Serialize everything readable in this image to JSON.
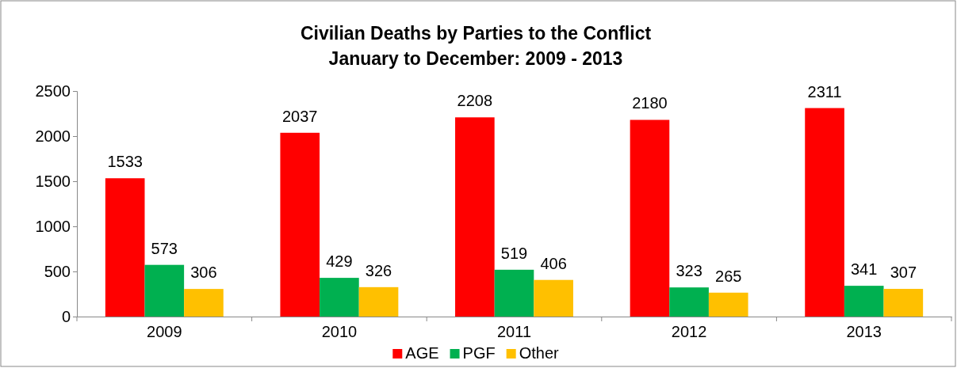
{
  "chart_data": {
    "type": "bar",
    "title": "Civilian Deaths by Parties to the Conflict\nJanuary to December: 2009 - 2013",
    "categories": [
      "2009",
      "2010",
      "2011",
      "2012",
      "2013"
    ],
    "series": [
      {
        "name": "AGE",
        "color": "#ff0000",
        "values": [
          1533,
          2037,
          2208,
          2180,
          2311
        ]
      },
      {
        "name": "PGF",
        "color": "#00b050",
        "values": [
          573,
          429,
          519,
          323,
          341
        ]
      },
      {
        "name": "Other",
        "color": "#ffc000",
        "values": [
          306,
          326,
          406,
          265,
          307
        ]
      }
    ],
    "ylim": [
      0,
      2500
    ],
    "yticks": [
      0,
      500,
      1000,
      1500,
      2000,
      2500
    ],
    "data_labels": true,
    "legend": "bottom"
  }
}
